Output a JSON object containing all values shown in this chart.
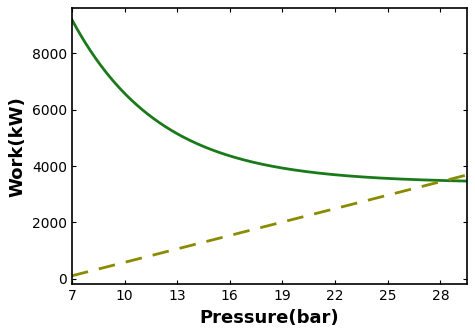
{
  "x_start": 7,
  "x_end": 29.5,
  "x_ticks": [
    7,
    10,
    13,
    16,
    19,
    22,
    25,
    28
  ],
  "y_ticks": [
    0,
    2000,
    4000,
    6000,
    8000
  ],
  "ylim": [
    -200,
    9600
  ],
  "xlim": [
    7,
    29.5
  ],
  "xlabel": "Pressure(bar)",
  "ylabel": "Work(kW)",
  "solid_color": "#1a7a1a",
  "dashed_color": "#8b8b00",
  "solid_A": 5800,
  "solid_asymptote": 3400,
  "solid_k": 0.2,
  "dashed_y0": -200,
  "dashed_y1": 3600,
  "linewidth": 2.0,
  "dash_pattern": [
    6,
    4
  ],
  "background_color": "#ffffff",
  "xlabel_fontsize": 13,
  "ylabel_fontsize": 13,
  "tick_fontsize": 10,
  "figsize": [
    4.75,
    3.35
  ],
  "dpi": 100
}
